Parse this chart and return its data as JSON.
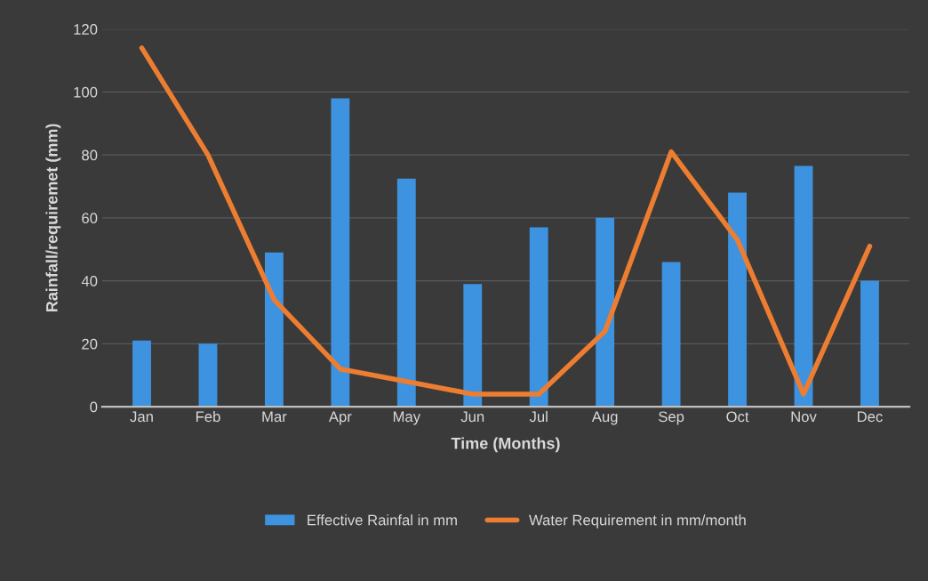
{
  "chart_data": {
    "type": "bar",
    "xlabel": "Time (Months)",
    "ylabel": "Rainfall/requiremet (mm)",
    "categories": [
      "Jan",
      "Feb",
      "Mar",
      "Apr",
      "May",
      "Jun",
      "Jul",
      "Aug",
      "Sep",
      "Oct",
      "Nov",
      "Dec"
    ],
    "series": [
      {
        "name": "Effective Rainfal in mm",
        "color": "#3d93e0",
        "values": [
          21,
          20,
          49,
          98,
          72.5,
          39,
          57,
          60,
          46,
          68,
          76.5,
          40
        ]
      },
      {
        "name": "Water Requirement in mm/month",
        "type": "line",
        "color": "#ed7d31",
        "values": [
          114,
          80,
          34,
          12,
          8,
          4,
          4,
          24,
          81,
          53,
          4,
          51
        ]
      }
    ],
    "ylim": [
      0,
      120
    ],
    "yticks": [
      0,
      20,
      40,
      60,
      80,
      100,
      120
    ],
    "grid": "y",
    "legend": "bottom",
    "marker": "none",
    "line_style": "solid"
  }
}
